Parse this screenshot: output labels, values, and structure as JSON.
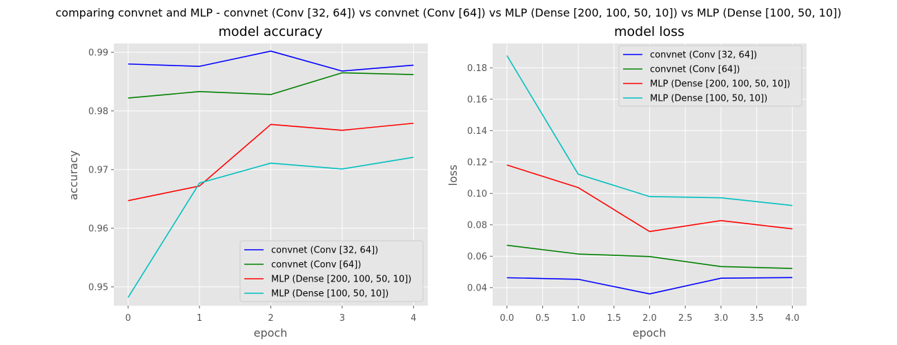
{
  "figure": {
    "suptitle": "comparing convnet and MLP - convnet (Conv [32, 64]) vs convnet (Conv [64]) vs MLP (Dense [200, 100, 50, 10]) vs MLP (Dense [100, 50, 10])"
  },
  "colors": {
    "background": "#e5e5e5",
    "grid": "#ffffff",
    "series": [
      "#0000ff",
      "#008000",
      "#ff0000",
      "#00bfbf"
    ]
  },
  "chart_data": [
    {
      "type": "line",
      "title": "model accuracy",
      "xlabel": "epoch",
      "ylabel": "accuracy",
      "x": [
        0,
        1,
        2,
        3,
        4
      ],
      "xticks": [
        "0",
        "1",
        "2",
        "3",
        "4"
      ],
      "yticks": [
        "0.95",
        "0.96",
        "0.97",
        "0.98",
        "0.99"
      ],
      "xlim": [
        -0.2,
        4.2
      ],
      "ylim": [
        0.9468,
        0.9915
      ],
      "grid": true,
      "legend": "lower-right",
      "series": [
        {
          "name": "convnet (Conv [32, 64])",
          "values": [
            0.988,
            0.9876,
            0.9902,
            0.9868,
            0.9878
          ]
        },
        {
          "name": "convnet (Conv [64])",
          "values": [
            0.9822,
            0.9833,
            0.9828,
            0.9865,
            0.9862
          ]
        },
        {
          "name": "MLP (Dense [200, 100, 50, 10])",
          "values": [
            0.9647,
            0.9672,
            0.9777,
            0.9767,
            0.9779
          ]
        },
        {
          "name": "MLP (Dense [100, 50, 10])",
          "values": [
            0.9482,
            0.9677,
            0.9711,
            0.9701,
            0.9721
          ]
        }
      ]
    },
    {
      "type": "line",
      "title": "model loss",
      "xlabel": "epoch",
      "ylabel": "loss",
      "x": [
        0,
        1,
        2,
        3,
        4
      ],
      "xticks": [
        "0.0",
        "0.5",
        "1.0",
        "1.5",
        "2.0",
        "2.5",
        "3.0",
        "3.5",
        "4.0"
      ],
      "yticks": [
        "0.04",
        "0.06",
        "0.08",
        "0.10",
        "0.12",
        "0.14",
        "0.16",
        "0.18"
      ],
      "xlim": [
        -0.2,
        4.2
      ],
      "ylim": [
        0.0285,
        0.1955
      ],
      "grid": true,
      "legend": "top-right",
      "series": [
        {
          "name": "convnet (Conv [32, 64])",
          "values": [
            0.0463,
            0.0453,
            0.036,
            0.046,
            0.0464
          ]
        },
        {
          "name": "convnet (Conv [64])",
          "values": [
            0.067,
            0.0614,
            0.0598,
            0.0534,
            0.0522
          ]
        },
        {
          "name": "MLP (Dense [200, 100, 50, 10])",
          "values": [
            0.1181,
            0.1037,
            0.0757,
            0.0827,
            0.0774
          ]
        },
        {
          "name": "MLP (Dense [100, 50, 10])",
          "values": [
            0.1878,
            0.1122,
            0.098,
            0.0972,
            0.0923
          ]
        }
      ]
    }
  ]
}
